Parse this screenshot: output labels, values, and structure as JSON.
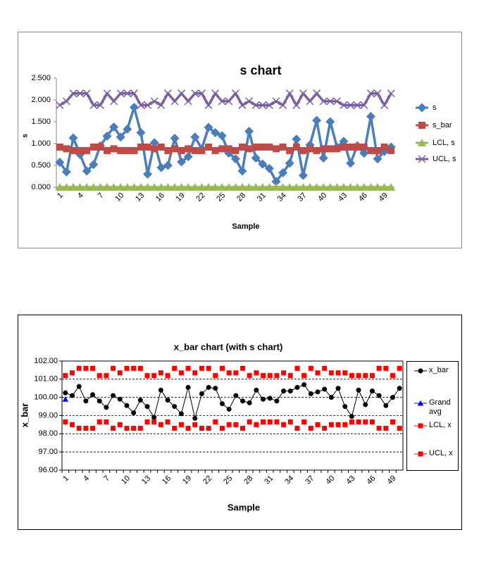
{
  "chart_data": [
    {
      "type": "line",
      "title": "s chart",
      "x_label": "Sample",
      "y_label": "s",
      "grid": false,
      "categories": [
        "1",
        null,
        null,
        "4",
        null,
        null,
        "7",
        null,
        null,
        "10",
        null,
        null,
        "13",
        null,
        null,
        "16",
        null,
        null,
        "19",
        null,
        null,
        "22",
        null,
        null,
        "25",
        null,
        null,
        "28",
        null,
        null,
        "31",
        null,
        null,
        "34",
        null,
        null,
        "37",
        null,
        null,
        "40",
        null,
        null,
        "43",
        null,
        null,
        "46",
        null,
        null,
        "49",
        null
      ],
      "ylim": [
        0,
        2.5
      ],
      "yticks": [
        {
          "value": 0,
          "label": "0.000"
        },
        {
          "value": 0.5,
          "label": "0.500"
        },
        {
          "value": 1,
          "label": "1.000"
        },
        {
          "value": 1.5,
          "label": "1.500"
        },
        {
          "value": 2,
          "label": "2.000"
        },
        {
          "value": 2.5,
          "label": "2.500"
        }
      ],
      "series": [
        {
          "name": "s",
          "color": "#4a7ebb",
          "marker": "diamond",
          "values": [
            0.57,
            0.35,
            1.13,
            0.75,
            0.37,
            0.52,
            0.95,
            1.17,
            1.38,
            1.15,
            1.33,
            1.83,
            1.25,
            0.3,
            1.02,
            0.45,
            0.5,
            1.12,
            0.58,
            0.7,
            1.15,
            0.88,
            1.37,
            1.25,
            1.18,
            0.78,
            0.65,
            0.37,
            1.28,
            0.67,
            0.53,
            0.43,
            0.13,
            0.33,
            0.55,
            1.1,
            0.27,
            0.97,
            1.53,
            0.67,
            1.5,
            0.92,
            1.05,
            0.55,
            0.95,
            0.78,
            1.62,
            0.65,
            0.82,
            0.92
          ]
        },
        {
          "name": "s_bar",
          "color": "#be4b48",
          "marker": "square",
          "values": [
            0.92,
            0.88,
            0.84,
            0.84,
            0.84,
            0.92,
            0.92,
            0.84,
            0.88,
            0.84,
            0.84,
            0.84,
            0.92,
            0.92,
            0.88,
            0.92,
            0.84,
            0.88,
            0.84,
            0.88,
            0.84,
            0.84,
            0.92,
            0.84,
            0.88,
            0.88,
            0.84,
            0.92,
            0.88,
            0.92,
            0.92,
            0.92,
            0.88,
            0.92,
            0.84,
            0.92,
            0.84,
            0.88,
            0.84,
            0.88,
            0.88,
            0.88,
            0.92,
            0.92,
            0.92,
            0.92,
            0.84,
            0.84,
            0.92,
            0.84
          ]
        },
        {
          "name": "LCL, s",
          "color": "#98b954",
          "marker": "triangle",
          "values": [
            0,
            0,
            0,
            0,
            0,
            0,
            0,
            0,
            0,
            0,
            0,
            0,
            0,
            0,
            0,
            0,
            0,
            0,
            0,
            0,
            0,
            0,
            0,
            0,
            0,
            0,
            0,
            0,
            0,
            0,
            0,
            0,
            0,
            0,
            0,
            0,
            0,
            0,
            0,
            0,
            0,
            0,
            0,
            0,
            0,
            0,
            0,
            0,
            0,
            0
          ]
        },
        {
          "name": "UCL, s",
          "color": "#7d60a0",
          "marker": "x",
          "values": [
            1.88,
            1.97,
            2.15,
            2.15,
            2.15,
            1.88,
            1.88,
            2.15,
            1.97,
            2.15,
            2.15,
            2.15,
            1.88,
            1.88,
            1.97,
            1.88,
            2.15,
            1.97,
            2.15,
            1.97,
            2.15,
            2.15,
            1.88,
            2.15,
            1.97,
            1.97,
            2.15,
            1.88,
            1.97,
            1.88,
            1.88,
            1.88,
            1.97,
            1.88,
            2.15,
            1.88,
            2.15,
            1.97,
            2.15,
            1.97,
            1.97,
            1.97,
            1.88,
            1.88,
            1.88,
            1.88,
            2.15,
            2.15,
            1.88,
            2.15
          ]
        }
      ]
    },
    {
      "type": "line",
      "title": "x_bar chart (with s chart)",
      "x_label": "Sample",
      "y_label": "x_bar",
      "grid": true,
      "categories": [
        "1",
        null,
        null,
        "4",
        null,
        null,
        "7",
        null,
        null,
        "10",
        null,
        null,
        "13",
        null,
        null,
        "16",
        null,
        null,
        "19",
        null,
        null,
        "22",
        null,
        null,
        "25",
        null,
        null,
        "28",
        null,
        null,
        "31",
        null,
        null,
        "34",
        null,
        null,
        "37",
        null,
        null,
        "40",
        null,
        null,
        "43",
        null,
        null,
        "46",
        null,
        null,
        "49",
        null
      ],
      "ylim": [
        96,
        102
      ],
      "yticks": [
        {
          "value": 96,
          "label": "96.00"
        },
        {
          "value": 97,
          "label": "97.00"
        },
        {
          "value": 98,
          "label": "98.00"
        },
        {
          "value": 99,
          "label": "99.00"
        },
        {
          "value": 100,
          "label": "100.00"
        },
        {
          "value": 101,
          "label": "101.00"
        },
        {
          "value": 102,
          "label": "102.00"
        }
      ],
      "series": [
        {
          "name": "x_bar",
          "color": "#000000",
          "marker": "circle",
          "line": true,
          "values": [
            100.25,
            100.1,
            100.6,
            99.8,
            100.15,
            99.8,
            99.45,
            100.1,
            99.9,
            99.55,
            99.15,
            99.85,
            99.5,
            98.9,
            100.4,
            99.85,
            99.5,
            99.1,
            100.55,
            98.85,
            100.2,
            100.55,
            100.5,
            99.65,
            99.35,
            100.1,
            99.8,
            99.7,
            100.4,
            99.9,
            99.95,
            99.8,
            100.35,
            100.35,
            100.55,
            100.7,
            100.2,
            100.3,
            100.45,
            100.0,
            100.5,
            99.5,
            98.95,
            100.4,
            99.6,
            100.35,
            100.1,
            99.55,
            100.0,
            100.5
          ]
        },
        {
          "name": "Grand avg",
          "color": "#0000ff",
          "marker": "triangle",
          "line": false,
          "values": [
            99.9,
            null,
            null,
            null,
            null,
            null,
            null,
            null,
            null,
            null,
            null,
            null,
            null,
            null,
            null,
            null,
            null,
            null,
            null,
            null,
            null,
            null,
            null,
            null,
            null,
            null,
            null,
            null,
            null,
            null,
            null,
            null,
            null,
            null,
            null,
            null,
            null,
            null,
            null,
            null,
            null,
            null,
            null,
            null,
            null,
            null,
            null,
            null,
            null,
            null
          ]
        },
        {
          "name": "LCL, x",
          "color": "#ff0000",
          "marker": "square",
          "line": false,
          "values": [
            98.65,
            98.5,
            98.3,
            98.3,
            98.3,
            98.65,
            98.65,
            98.3,
            98.5,
            98.3,
            98.3,
            98.3,
            98.65,
            98.65,
            98.5,
            98.65,
            98.3,
            98.5,
            98.3,
            98.5,
            98.3,
            98.3,
            98.65,
            98.3,
            98.5,
            98.5,
            98.3,
            98.65,
            98.5,
            98.65,
            98.65,
            98.65,
            98.5,
            98.65,
            98.3,
            98.65,
            98.3,
            98.5,
            98.3,
            98.5,
            98.5,
            98.5,
            98.65,
            98.65,
            98.65,
            98.65,
            98.3,
            98.3,
            98.65,
            98.3
          ]
        },
        {
          "name": "UCL, x",
          "color": "#ff0000",
          "marker": "square",
          "line": false,
          "values": [
            101.2,
            101.35,
            101.6,
            101.6,
            101.6,
            101.2,
            101.2,
            101.6,
            101.35,
            101.6,
            101.6,
            101.6,
            101.2,
            101.2,
            101.35,
            101.2,
            101.6,
            101.35,
            101.6,
            101.35,
            101.6,
            101.6,
            101.2,
            101.6,
            101.35,
            101.35,
            101.6,
            101.2,
            101.35,
            101.2,
            101.2,
            101.2,
            101.35,
            101.2,
            101.6,
            101.2,
            101.6,
            101.35,
            101.6,
            101.35,
            101.35,
            101.35,
            101.2,
            101.2,
            101.2,
            101.2,
            101.6,
            101.6,
            101.2,
            101.6
          ]
        }
      ]
    }
  ]
}
